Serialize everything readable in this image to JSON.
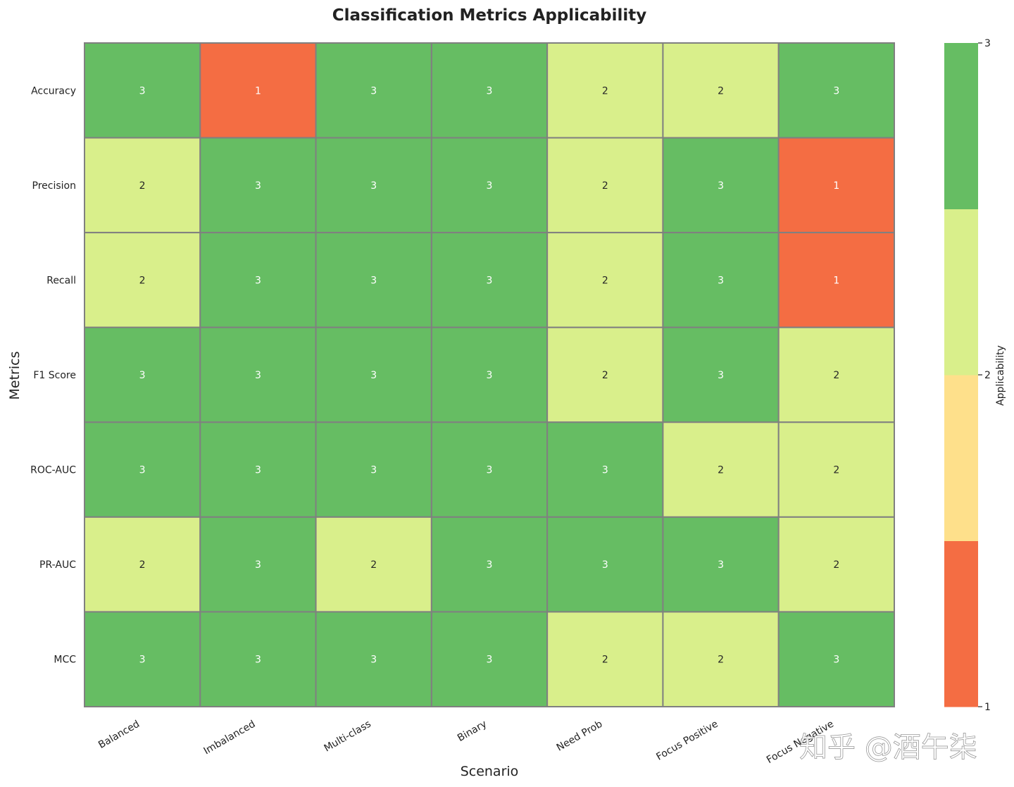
{
  "chart_data": {
    "type": "heatmap",
    "title": "Classification Metrics Applicability",
    "xlabel": "Scenario",
    "ylabel": "Metrics",
    "x_categories": [
      "Balanced",
      "Imbalanced",
      "Multi-class",
      "Binary",
      "Need Prob",
      "Focus Positive",
      "Focus Negative"
    ],
    "y_categories": [
      "Accuracy",
      "Precision",
      "Recall",
      "F1 Score",
      "ROC-AUC",
      "PR-AUC",
      "MCC"
    ],
    "values": [
      [
        3,
        1,
        3,
        3,
        2,
        2,
        3
      ],
      [
        2,
        3,
        3,
        3,
        2,
        3,
        1
      ],
      [
        2,
        3,
        3,
        3,
        2,
        3,
        1
      ],
      [
        3,
        3,
        3,
        3,
        2,
        3,
        2
      ],
      [
        3,
        3,
        3,
        3,
        3,
        2,
        2
      ],
      [
        2,
        3,
        2,
        3,
        3,
        3,
        2
      ],
      [
        3,
        3,
        3,
        3,
        2,
        2,
        3
      ]
    ],
    "annotated": true,
    "colorbar": {
      "label": "Applicability",
      "range": [
        1,
        3
      ],
      "ticks": [
        "1",
        "2",
        "3"
      ],
      "colors": [
        "#f46d43",
        "#fee08b",
        "#d9ef8b",
        "#66bd63"
      ]
    },
    "cell_border_color": "#808080"
  },
  "watermark": "知乎 @酒午柒"
}
